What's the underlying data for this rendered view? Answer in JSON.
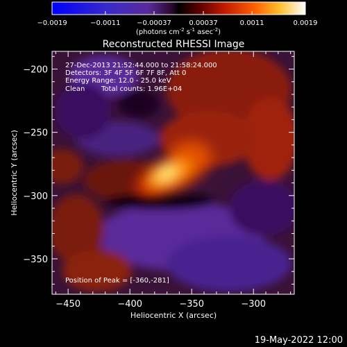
{
  "colorbar": {
    "ticks": [
      "-0.0019",
      "-0.0011",
      "-0.00037",
      "0.00037",
      "0.0011",
      "0.0019"
    ],
    "units_prefix": "(photons cm",
    "units_exp1": "-2",
    "units_mid": " s",
    "units_exp2": "-1",
    "units_mid2": " asec",
    "units_exp3": "-2",
    "units_suffix": ")"
  },
  "annotations": {
    "time_range": "27-Dec-2013 21:52:44.000 to 21:58:24.000",
    "detectors": "Detectors: 3F 4F 5F 6F 7F 8F, Att 0",
    "energy": "Energy Range: 12.0 - 25.0 keV",
    "clean": "Clean",
    "total_counts": "Total counts: 1.96E+04",
    "peak": "Position of Peak = [-360,-281]"
  },
  "footer_date": "19-May-2022 12:00",
  "chart_data": {
    "type": "heatmap",
    "title": "Reconstructed RHESSI Image",
    "xlabel": "Heliocentric X (arcsec)",
    "ylabel": "Heliocentric Y (arcsec)",
    "xlim": [
      -463,
      -267
    ],
    "ylim": [
      -378,
      -186
    ],
    "xticks": [
      -450,
      -400,
      -350,
      -300
    ],
    "yticks": [
      -200,
      -250,
      -300,
      -350
    ],
    "color_range": [
      -0.0019,
      0.0019
    ],
    "peak": {
      "x": -360,
      "y": -281
    },
    "grid": false,
    "colormap": [
      "#0000ff",
      "#5a2a9a",
      "#2a0030",
      "#000000",
      "#7a0a00",
      "#d02000",
      "#ff8000",
      "#ffff60",
      "#ffffff"
    ]
  }
}
